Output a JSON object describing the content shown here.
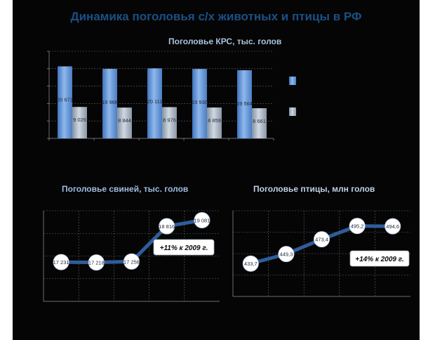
{
  "title": "Динамика поголовья с/х животных и птицы в РФ",
  "colors": {
    "background": "#050505",
    "title": "#1b4f86",
    "bar_primary": "#5b8fd4",
    "bar_secondary": "#a2b0c0",
    "line": "#2f5d9a",
    "gridline": "#666666"
  },
  "chart_data": [
    {
      "type": "bar",
      "title": "Поголовье КРС, тыс. голов",
      "categories": [
        "",
        "",
        "",
        "",
        ""
      ],
      "series": [
        {
          "values": [
            20671,
            19968,
            20111,
            19930,
            19564
          ]
        },
        {
          "values": [
            9026,
            8844,
            8976,
            8859,
            8661
          ]
        }
      ],
      "data_labels": [
        [
          "20 671",
          "19 968",
          "20 111",
          "19 930",
          "19 564"
        ],
        [
          "9 026",
          "8 844",
          "8 976",
          "8 859",
          "8 661"
        ]
      ],
      "ylim": [
        0,
        25000
      ],
      "grid": true,
      "legend": "right"
    },
    {
      "type": "line",
      "title": "Поголовье свиней, тыс. голов",
      "values": [
        17231,
        17218,
        17258,
        18816,
        19081
      ],
      "data_labels": [
        "17 231",
        "17 218",
        "17 258",
        "18 816",
        "19 081"
      ],
      "ylim": [
        15500,
        19500
      ],
      "grid": true,
      "annotation": "+11% к 2009 г."
    },
    {
      "type": "line",
      "title": "Поголовье птицы, млн голов",
      "values": [
        433.7,
        449.3,
        473.4,
        495.2,
        494.6
      ],
      "data_labels": [
        "433,7",
        "449,3",
        "473,4",
        "495,2",
        "494,6"
      ],
      "ylim": [
        380,
        520
      ],
      "grid": true,
      "annotation": "+14% к 2009 г."
    }
  ]
}
